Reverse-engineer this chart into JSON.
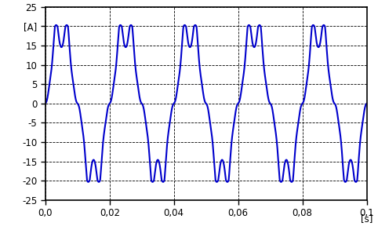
{
  "xlabel": "[s]",
  "ylabel_label": "[A]",
  "xlim": [
    0.0,
    0.1
  ],
  "ylim": [
    -25,
    25
  ],
  "xticks": [
    0.0,
    0.02,
    0.04,
    0.06,
    0.08,
    0.1
  ],
  "xticklabels": [
    "0,0",
    "0,02",
    "0,04",
    "0,06",
    "0,08",
    "0,1"
  ],
  "yticks": [
    -25,
    -20,
    -15,
    -10,
    -5,
    0,
    5,
    10,
    15,
    20,
    25
  ],
  "yticklabels": [
    "-25",
    "-20",
    "-15",
    "-10",
    "-5",
    "0",
    "5",
    "10",
    "15",
    "[A]",
    "25"
  ],
  "line_color": "#0000cc",
  "line_width": 1.5,
  "background_color": "#ffffff",
  "grid_color": "#000000",
  "grid_style": "--",
  "grid_linewidth": 0.6,
  "freq": 50,
  "amplitude": 20.3
}
